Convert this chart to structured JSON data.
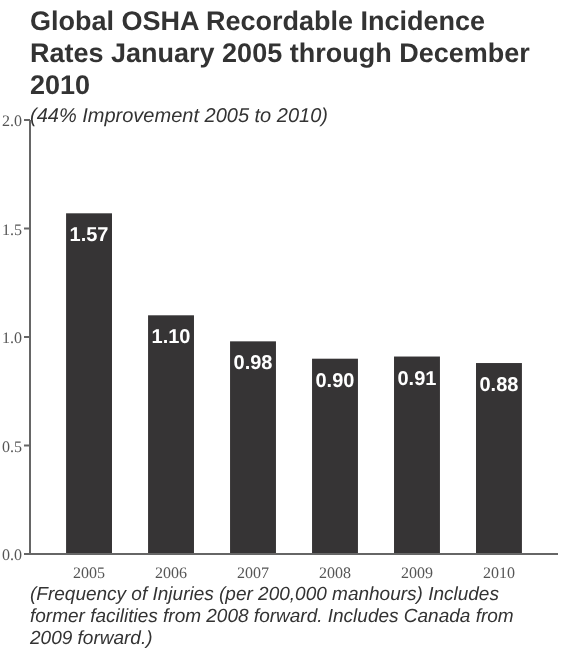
{
  "chart_data": {
    "type": "bar",
    "title": "Global OSHA Recordable Incidence Rates January 2005 through December 2010",
    "subtitle": "(44% Improvement 2005 to 2010)",
    "categories": [
      "2005",
      "2006",
      "2007",
      "2008",
      "2009",
      "2010"
    ],
    "values": [
      1.57,
      1.1,
      0.98,
      0.9,
      0.91,
      0.88
    ],
    "value_labels": [
      "1.57",
      "1.10",
      "0.98",
      "0.90",
      "0.91",
      "0.88"
    ],
    "color": "#363435",
    "ylim": [
      0,
      2.0
    ],
    "yticks": [
      {
        "value": 0,
        "label": "0.0"
      },
      {
        "value": 0.5,
        "label": "0.5"
      },
      {
        "value": 1,
        "label": "1.0"
      },
      {
        "value": 1.5,
        "label": "1.5"
      },
      {
        "value": 2,
        "label": "2.0"
      }
    ],
    "grid": false,
    "annotations": [
      "(Frequency of Injuries (per 200,000 manhours) Includes former facilities from 2008 forward. Includes Canada from 2009 forward.)"
    ]
  }
}
